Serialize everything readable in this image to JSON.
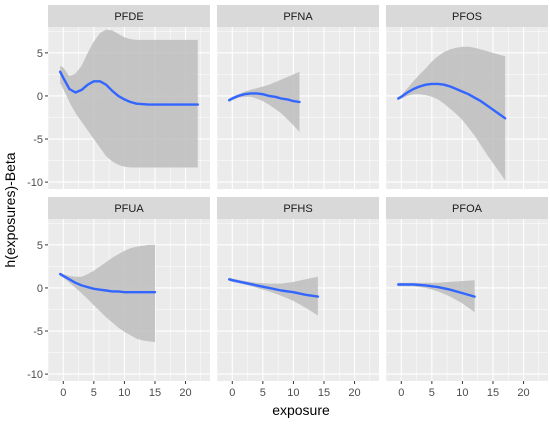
{
  "chart_data": {
    "type": "line",
    "xlabel": "exposure",
    "ylabel": "h(exposures)-Beta",
    "xlim": [
      -2.5,
      24
    ],
    "ylim": [
      -10.8,
      8
    ],
    "x_ticks": [
      0,
      5,
      10,
      15,
      20
    ],
    "x_tick_labels": [
      "0",
      "5",
      "10",
      "15",
      "20"
    ],
    "y_ticks": [
      5,
      0,
      -5,
      -10
    ],
    "y_tick_labels": [
      "5",
      "0",
      "-5",
      "-10"
    ],
    "grid": true,
    "colors": {
      "line": "#3366ff",
      "band": "#bdbdbd",
      "panel_bg": "#ebebeb",
      "strip_bg": "#d9d9d9",
      "grid": "#ffffff"
    },
    "panels": [
      {
        "name": "PFDE",
        "x": [
          -0.5,
          0,
          1,
          2,
          3,
          4,
          5,
          6,
          7,
          8,
          9,
          10,
          11,
          12,
          14,
          16,
          18,
          20,
          22
        ],
        "y": [
          2.8,
          2.1,
          0.8,
          0.4,
          0.7,
          1.3,
          1.7,
          1.7,
          1.3,
          0.6,
          0.0,
          -0.4,
          -0.7,
          -0.9,
          -1.0,
          -1.0,
          -1.0,
          -1.0,
          -1.0
        ],
        "lower": [
          1.5,
          0.8,
          -0.7,
          -2.0,
          -3.0,
          -4.0,
          -5.0,
          -6.0,
          -7.0,
          -7.6,
          -8.0,
          -8.2,
          -8.3,
          -8.3,
          -8.3,
          -8.3,
          -8.3,
          -8.3,
          -8.3
        ],
        "upper": [
          3.5,
          3.3,
          2.3,
          2.6,
          3.5,
          5.0,
          6.3,
          7.3,
          7.7,
          7.6,
          7.2,
          6.8,
          6.6,
          6.5,
          6.5,
          6.5,
          6.5,
          6.5,
          6.5
        ]
      },
      {
        "name": "PFNA",
        "x": [
          -0.5,
          0,
          1,
          2,
          3,
          4,
          5,
          6,
          7,
          8,
          9,
          10,
          11
        ],
        "y": [
          -0.5,
          -0.3,
          0.0,
          0.2,
          0.3,
          0.3,
          0.2,
          0.0,
          -0.1,
          -0.3,
          -0.4,
          -0.6,
          -0.7
        ],
        "lower": [
          -0.7,
          -0.5,
          -0.2,
          -0.1,
          -0.1,
          -0.3,
          -0.6,
          -1.0,
          -1.5,
          -2.0,
          -2.7,
          -3.4,
          -4.2
        ],
        "upper": [
          -0.3,
          -0.1,
          0.2,
          0.5,
          0.7,
          0.9,
          1.1,
          1.3,
          1.6,
          1.9,
          2.2,
          2.5,
          2.8
        ]
      },
      {
        "name": "PFOS",
        "x": [
          -0.5,
          0,
          1,
          2,
          3,
          4,
          5,
          6,
          7,
          8,
          9,
          10,
          11,
          12,
          13,
          14,
          15,
          16,
          17
        ],
        "y": [
          -0.3,
          -0.1,
          0.4,
          0.8,
          1.1,
          1.3,
          1.4,
          1.4,
          1.3,
          1.1,
          0.8,
          0.5,
          0.2,
          -0.2,
          -0.6,
          -1.1,
          -1.6,
          -2.1,
          -2.6
        ],
        "lower": [
          -0.5,
          -0.3,
          0.0,
          0.2,
          0.2,
          0.1,
          -0.1,
          -0.4,
          -0.9,
          -1.5,
          -2.1,
          -2.8,
          -3.7,
          -4.6,
          -5.7,
          -6.8,
          -7.8,
          -8.8,
          -9.8
        ],
        "upper": [
          -0.1,
          0.1,
          0.9,
          1.7,
          2.5,
          3.2,
          4.0,
          4.6,
          5.1,
          5.4,
          5.6,
          5.7,
          5.7,
          5.6,
          5.4,
          5.2,
          5.0,
          4.8,
          4.6
        ]
      },
      {
        "name": "PFUA",
        "x": [
          -0.5,
          0,
          1,
          2,
          3,
          4,
          5,
          6,
          7,
          8,
          9,
          10,
          11,
          12,
          13,
          14,
          15
        ],
        "y": [
          1.6,
          1.4,
          1.0,
          0.6,
          0.3,
          0.1,
          -0.1,
          -0.2,
          -0.3,
          -0.4,
          -0.4,
          -0.5,
          -0.5,
          -0.5,
          -0.5,
          -0.5,
          -0.5
        ],
        "lower": [
          1.4,
          1.2,
          0.6,
          0.0,
          -0.6,
          -1.3,
          -2.0,
          -2.7,
          -3.4,
          -4.0,
          -4.6,
          -5.1,
          -5.5,
          -5.9,
          -6.1,
          -6.2,
          -6.3
        ],
        "upper": [
          1.8,
          1.6,
          1.4,
          1.3,
          1.3,
          1.6,
          2.0,
          2.5,
          3.0,
          3.5,
          3.9,
          4.3,
          4.6,
          4.8,
          4.9,
          5.0,
          5.0
        ]
      },
      {
        "name": "PFHS",
        "x": [
          -0.5,
          0,
          2,
          4,
          6,
          8,
          10,
          12,
          14
        ],
        "y": [
          1.0,
          0.9,
          0.6,
          0.3,
          0.0,
          -0.3,
          -0.5,
          -0.8,
          -1.0
        ],
        "lower": [
          0.8,
          0.7,
          0.4,
          0.0,
          -0.4,
          -0.9,
          -1.5,
          -2.3,
          -3.2
        ],
        "upper": [
          1.2,
          1.1,
          0.8,
          0.6,
          0.5,
          0.5,
          0.7,
          1.0,
          1.3
        ]
      },
      {
        "name": "PFOA",
        "x": [
          -0.5,
          0,
          2,
          4,
          6,
          8,
          10,
          12
        ],
        "y": [
          0.4,
          0.4,
          0.4,
          0.3,
          0.1,
          -0.2,
          -0.6,
          -1.0
        ],
        "lower": [
          0.2,
          0.2,
          0.2,
          0.0,
          -0.4,
          -1.0,
          -1.8,
          -2.8
        ],
        "upper": [
          0.6,
          0.6,
          0.6,
          0.6,
          0.6,
          0.7,
          0.8,
          0.9
        ]
      }
    ]
  }
}
